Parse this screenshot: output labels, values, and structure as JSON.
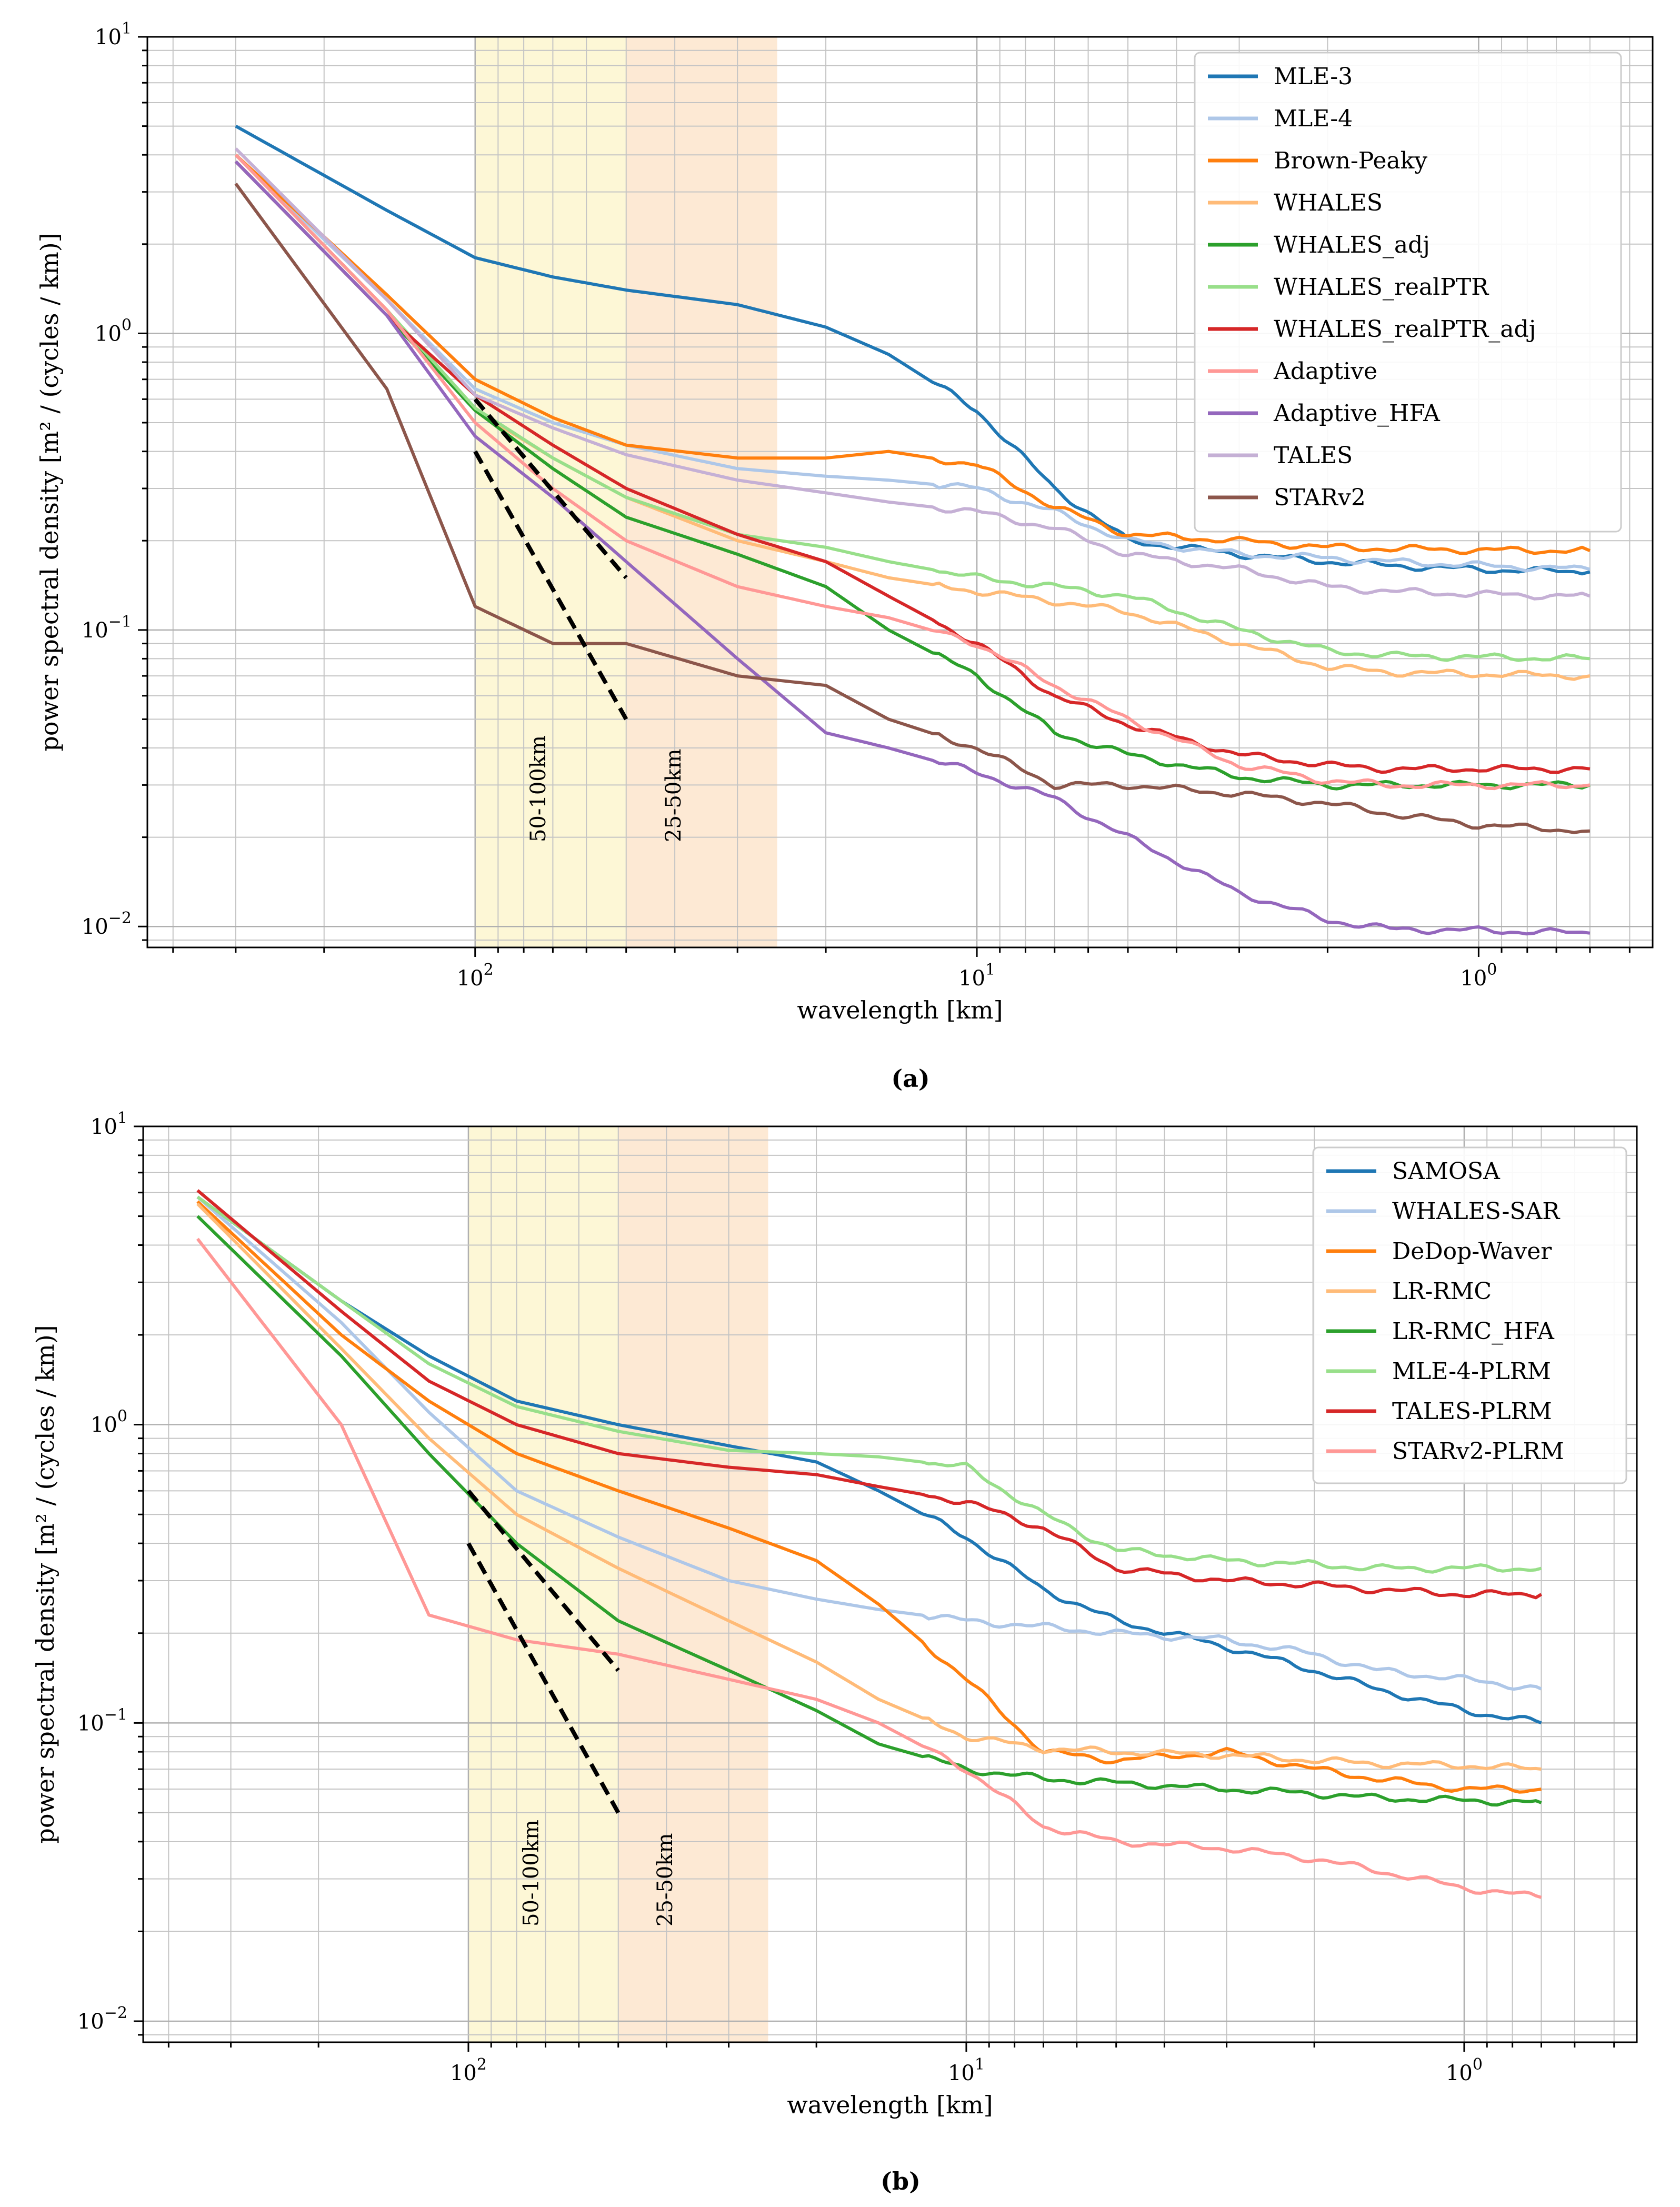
{
  "figure": {
    "xlabel": "wavelength [km]",
    "ylabel": "power spectral density [m² / (cycles / km)]",
    "x_ticks": [
      {
        "v": 100,
        "base": "10",
        "exp": "2"
      },
      {
        "v": 10,
        "base": "10",
        "exp": "1"
      },
      {
        "v": 1,
        "base": "10",
        "exp": "0"
      }
    ],
    "y_ticks": [
      {
        "v": 10,
        "base": "10",
        "exp": "1"
      },
      {
        "v": 1,
        "base": "10",
        "exp": "0"
      },
      {
        "v": 0.1,
        "base": "10",
        "exp": "−1"
      },
      {
        "v": 0.01,
        "base": "10",
        "exp": "−2"
      }
    ],
    "band_labels": [
      "50-100km",
      "25-50km"
    ]
  },
  "chart_data": [
    {
      "type": "line",
      "caption": "(a)",
      "xscale": "log-reversed",
      "yscale": "log",
      "xlim": [
        450,
        0.45
      ],
      "ylim": [
        0.0085,
        10
      ],
      "grid": true,
      "legend_position": "top-right",
      "shaded_bands": [
        {
          "label": "50-100km",
          "from": 100,
          "to": 50,
          "color": "#fdf7d6"
        },
        {
          "label": "25-50km",
          "from": 50,
          "to": 25,
          "color": "#fde9d4"
        }
      ],
      "reference_lines": [
        {
          "x": [
            100,
            50
          ],
          "y": [
            0.6,
            0.15
          ],
          "style": "dashed"
        },
        {
          "x": [
            100,
            50
          ],
          "y": [
            0.4,
            0.05
          ],
          "style": "dashed"
        }
      ],
      "x": [
        300,
        150,
        100,
        70,
        50,
        30,
        20,
        15,
        10,
        7,
        5,
        3,
        2,
        1.5,
        1,
        0.6
      ],
      "series": [
        {
          "name": "MLE-3",
          "color": "#1f77b4",
          "values": [
            5.0,
            2.6,
            1.8,
            1.55,
            1.4,
            1.25,
            1.05,
            0.85,
            0.55,
            0.3,
            0.2,
            0.18,
            0.17,
            0.165,
            0.16,
            0.157
          ]
        },
        {
          "name": "MLE-4",
          "color": "#aec7e8",
          "values": [
            4.0,
            1.3,
            0.65,
            0.5,
            0.42,
            0.35,
            0.33,
            0.32,
            0.3,
            0.25,
            0.2,
            0.18,
            0.175,
            0.17,
            0.165,
            0.16
          ]
        },
        {
          "name": "Brown-Peaky",
          "color": "#ff7f0e",
          "values": [
            4.0,
            1.35,
            0.7,
            0.52,
            0.42,
            0.38,
            0.38,
            0.4,
            0.36,
            0.26,
            0.21,
            0.2,
            0.19,
            0.188,
            0.186,
            0.185
          ]
        },
        {
          "name": "WHALES",
          "color": "#ffbb78",
          "values": [
            4.0,
            1.2,
            0.55,
            0.38,
            0.28,
            0.2,
            0.17,
            0.15,
            0.135,
            0.125,
            0.115,
            0.09,
            0.075,
            0.072,
            0.071,
            0.07
          ]
        },
        {
          "name": "WHALES_adj",
          "color": "#2ca02c",
          "values": [
            3.8,
            1.15,
            0.55,
            0.35,
            0.24,
            0.18,
            0.14,
            0.1,
            0.07,
            0.045,
            0.038,
            0.032,
            0.03,
            0.03,
            0.03,
            0.03
          ]
        },
        {
          "name": "WHALES_realPTR",
          "color": "#98df8a",
          "values": [
            4.0,
            1.2,
            0.56,
            0.38,
            0.28,
            0.21,
            0.19,
            0.17,
            0.15,
            0.14,
            0.13,
            0.1,
            0.085,
            0.082,
            0.081,
            0.08
          ]
        },
        {
          "name": "WHALES_realPTR_adj",
          "color": "#d62728",
          "values": [
            3.8,
            1.15,
            0.62,
            0.42,
            0.3,
            0.21,
            0.17,
            0.13,
            0.09,
            0.06,
            0.048,
            0.038,
            0.035,
            0.034,
            0.034,
            0.034
          ]
        },
        {
          "name": "Adaptive",
          "color": "#ff9896",
          "values": [
            4.0,
            1.2,
            0.5,
            0.3,
            0.2,
            0.14,
            0.12,
            0.11,
            0.09,
            0.065,
            0.05,
            0.035,
            0.031,
            0.03,
            0.03,
            0.03
          ]
        },
        {
          "name": "Adaptive_HFA",
          "color": "#9467bd",
          "values": [
            3.8,
            1.15,
            0.45,
            0.28,
            0.17,
            0.08,
            0.045,
            0.04,
            0.033,
            0.027,
            0.02,
            0.013,
            0.0105,
            0.0098,
            0.0097,
            0.0095
          ]
        },
        {
          "name": "TALES",
          "color": "#c5b0d5",
          "values": [
            4.2,
            1.3,
            0.62,
            0.48,
            0.39,
            0.32,
            0.29,
            0.27,
            0.25,
            0.22,
            0.18,
            0.16,
            0.14,
            0.135,
            0.132,
            0.13
          ]
        },
        {
          "name": "STARv2",
          "color": "#8c564b",
          "values": [
            3.2,
            0.65,
            0.12,
            0.09,
            0.09,
            0.07,
            0.065,
            0.05,
            0.04,
            0.03,
            0.03,
            0.028,
            0.026,
            0.024,
            0.022,
            0.021
          ]
        }
      ]
    },
    {
      "type": "line",
      "caption": "(b)",
      "xscale": "log-reversed",
      "yscale": "log",
      "xlim": [
        450,
        0.45
      ],
      "ylim": [
        0.0085,
        10
      ],
      "grid": true,
      "legend_position": "top-right",
      "shaded_bands": [
        {
          "label": "50-100km",
          "from": 100,
          "to": 50,
          "color": "#fdf7d6"
        },
        {
          "label": "25-50km",
          "from": 50,
          "to": 25,
          "color": "#fde9d4"
        }
      ],
      "reference_lines": [
        {
          "x": [
            100,
            50
          ],
          "y": [
            0.6,
            0.15
          ],
          "style": "dashed"
        },
        {
          "x": [
            100,
            50
          ],
          "y": [
            0.4,
            0.05
          ],
          "style": "dashed"
        }
      ],
      "x": [
        350,
        180,
        120,
        80,
        50,
        30,
        20,
        15,
        10,
        7,
        5,
        3,
        2,
        1.5,
        1,
        0.7
      ],
      "series": [
        {
          "name": "SAMOSA",
          "color": "#1f77b4",
          "values": [
            5.8,
            2.6,
            1.7,
            1.2,
            1.0,
            0.85,
            0.75,
            0.6,
            0.42,
            0.28,
            0.22,
            0.18,
            0.15,
            0.13,
            0.11,
            0.1
          ]
        },
        {
          "name": "WHALES-SAR",
          "color": "#aec7e8",
          "values": [
            5.8,
            2.2,
            1.1,
            0.6,
            0.42,
            0.3,
            0.26,
            0.24,
            0.22,
            0.21,
            0.2,
            0.19,
            0.17,
            0.15,
            0.14,
            0.13
          ]
        },
        {
          "name": "DeDop-Waver",
          "color": "#ff7f0e",
          "values": [
            5.6,
            2.0,
            1.2,
            0.8,
            0.6,
            0.45,
            0.35,
            0.25,
            0.14,
            0.08,
            0.075,
            0.08,
            0.07,
            0.065,
            0.06,
            0.06
          ]
        },
        {
          "name": "LR-RMC",
          "color": "#ffbb78",
          "values": [
            5.5,
            1.8,
            0.9,
            0.5,
            0.33,
            0.22,
            0.16,
            0.12,
            0.09,
            0.082,
            0.08,
            0.078,
            0.075,
            0.073,
            0.072,
            0.07
          ]
        },
        {
          "name": "LR-RMC_HFA",
          "color": "#2ca02c",
          "values": [
            5.0,
            1.7,
            0.8,
            0.4,
            0.22,
            0.15,
            0.11,
            0.085,
            0.07,
            0.065,
            0.063,
            0.06,
            0.058,
            0.056,
            0.055,
            0.054
          ]
        },
        {
          "name": "MLE-4-PLRM",
          "color": "#98df8a",
          "values": [
            5.8,
            2.6,
            1.6,
            1.15,
            0.95,
            0.82,
            0.8,
            0.78,
            0.72,
            0.5,
            0.38,
            0.35,
            0.34,
            0.33,
            0.33,
            0.33
          ]
        },
        {
          "name": "TALES-PLRM",
          "color": "#d62728",
          "values": [
            6.1,
            2.4,
            1.4,
            1.0,
            0.8,
            0.72,
            0.68,
            0.62,
            0.55,
            0.45,
            0.33,
            0.3,
            0.29,
            0.28,
            0.27,
            0.27
          ]
        },
        {
          "name": "STARv2-PLRM",
          "color": "#ff9896",
          "values": [
            4.2,
            1.0,
            0.23,
            0.19,
            0.17,
            0.14,
            0.12,
            0.1,
            0.07,
            0.045,
            0.04,
            0.038,
            0.035,
            0.032,
            0.028,
            0.026
          ]
        }
      ]
    }
  ]
}
